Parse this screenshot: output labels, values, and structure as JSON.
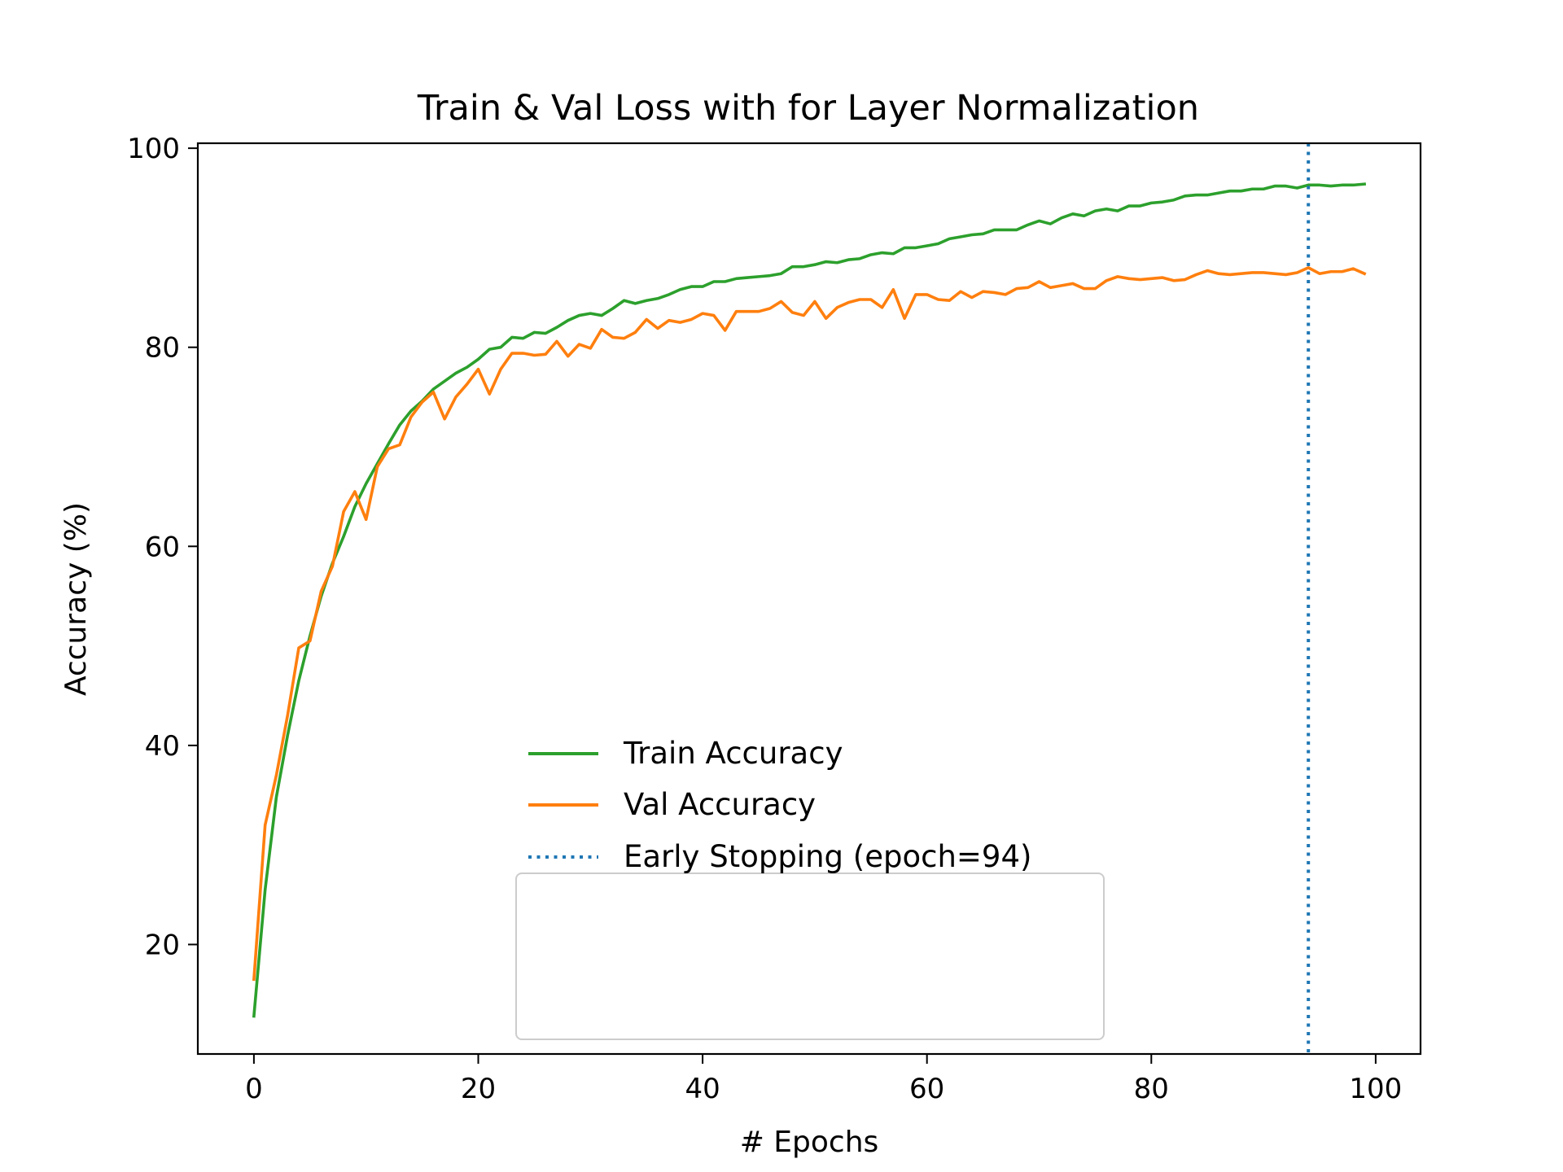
{
  "chart_data": {
    "type": "line",
    "title": "Train & Val Loss with for Layer Normalization",
    "xlabel": "# Epochs",
    "ylabel": "Accuracy (%)",
    "xlim": [
      -5,
      104
    ],
    "ylim": [
      9,
      100.5
    ],
    "xticks": [
      0,
      20,
      40,
      60,
      80,
      100
    ],
    "yticks": [
      20,
      40,
      60,
      80,
      100
    ],
    "grid": false,
    "legend_position": "bottom-center",
    "series": [
      {
        "name": "Train Accuracy",
        "color": "#2ca02c",
        "style": "solid",
        "x": [
          0,
          1,
          2,
          3,
          4,
          5,
          6,
          7,
          8,
          9,
          10,
          11,
          12,
          13,
          14,
          15,
          16,
          17,
          18,
          19,
          20,
          21,
          22,
          23,
          24,
          25,
          26,
          27,
          28,
          29,
          30,
          31,
          32,
          33,
          34,
          35,
          36,
          37,
          38,
          39,
          40,
          41,
          42,
          43,
          44,
          45,
          46,
          47,
          48,
          49,
          50,
          51,
          52,
          53,
          54,
          55,
          56,
          57,
          58,
          59,
          60,
          61,
          62,
          63,
          64,
          65,
          66,
          67,
          68,
          69,
          70,
          71,
          72,
          73,
          74,
          75,
          76,
          77,
          78,
          79,
          80,
          81,
          82,
          83,
          84,
          85,
          86,
          87,
          88,
          89,
          90,
          91,
          92,
          93,
          94,
          95,
          96,
          97,
          98,
          99
        ],
        "values": [
          12.8,
          25.5,
          34.8,
          41.0,
          46.5,
          51.0,
          55.0,
          58.3,
          61.0,
          64.0,
          66.3,
          68.3,
          70.3,
          72.2,
          73.6,
          74.6,
          75.8,
          76.6,
          77.4,
          78.0,
          78.8,
          79.8,
          80.0,
          81.0,
          80.9,
          81.5,
          81.4,
          82.0,
          82.7,
          83.2,
          83.4,
          83.2,
          83.9,
          84.7,
          84.4,
          84.7,
          84.9,
          85.3,
          85.8,
          86.1,
          86.1,
          86.6,
          86.6,
          86.9,
          87.0,
          87.1,
          87.2,
          87.4,
          88.1,
          88.1,
          88.3,
          88.6,
          88.5,
          88.8,
          88.9,
          89.3,
          89.5,
          89.4,
          90.0,
          90.0,
          90.2,
          90.4,
          90.9,
          91.1,
          91.3,
          91.4,
          91.8,
          91.8,
          91.8,
          92.3,
          92.7,
          92.4,
          93.0,
          93.4,
          93.2,
          93.7,
          93.9,
          93.7,
          94.2,
          94.2,
          94.5,
          94.6,
          94.8,
          95.2,
          95.3,
          95.3,
          95.5,
          95.7,
          95.7,
          95.9,
          95.9,
          96.2,
          96.2,
          96.0,
          96.3,
          96.3,
          96.2,
          96.3,
          96.3,
          96.4
        ]
      },
      {
        "name": "Val Accuracy",
        "color": "#ff7f0e",
        "style": "solid",
        "x": [
          0,
          1,
          2,
          3,
          4,
          5,
          6,
          7,
          8,
          9,
          10,
          11,
          12,
          13,
          14,
          15,
          16,
          17,
          18,
          19,
          20,
          21,
          22,
          23,
          24,
          25,
          26,
          27,
          28,
          29,
          30,
          31,
          32,
          33,
          34,
          35,
          36,
          37,
          38,
          39,
          40,
          41,
          42,
          43,
          44,
          45,
          46,
          47,
          48,
          49,
          50,
          51,
          52,
          53,
          54,
          55,
          56,
          57,
          58,
          59,
          60,
          61,
          62,
          63,
          64,
          65,
          66,
          67,
          68,
          69,
          70,
          71,
          72,
          73,
          74,
          75,
          76,
          77,
          78,
          79,
          80,
          81,
          82,
          83,
          84,
          85,
          86,
          87,
          88,
          89,
          90,
          91,
          92,
          93,
          94,
          95,
          96,
          97,
          98,
          99
        ],
        "values": [
          16.5,
          32.0,
          37.0,
          43.0,
          49.8,
          50.5,
          55.5,
          58.0,
          63.5,
          65.5,
          62.7,
          68.0,
          69.8,
          70.2,
          73.0,
          74.5,
          75.5,
          72.8,
          75.0,
          76.3,
          77.8,
          75.3,
          77.8,
          79.4,
          79.4,
          79.2,
          79.3,
          80.6,
          79.1,
          80.3,
          79.9,
          81.8,
          81.0,
          80.9,
          81.5,
          82.8,
          81.9,
          82.7,
          82.5,
          82.8,
          83.4,
          83.2,
          81.7,
          83.6,
          83.6,
          83.6,
          83.9,
          84.6,
          83.5,
          83.2,
          84.6,
          82.9,
          84.0,
          84.5,
          84.8,
          84.8,
          84.0,
          85.8,
          82.9,
          85.3,
          85.3,
          84.8,
          84.7,
          85.6,
          85.0,
          85.6,
          85.5,
          85.3,
          85.9,
          86.0,
          86.6,
          86.0,
          86.2,
          86.4,
          85.9,
          85.9,
          86.7,
          87.1,
          86.9,
          86.8,
          86.9,
          87.0,
          86.7,
          86.8,
          87.3,
          87.7,
          87.4,
          87.3,
          87.4,
          87.5,
          87.5,
          87.4,
          87.3,
          87.5,
          88.0,
          87.4,
          87.6,
          87.6,
          87.9,
          87.4
        ]
      },
      {
        "name": "Early Stopping (epoch=94)",
        "color": "#1f77b4",
        "style": "dotted",
        "type": "vline",
        "x_value": 94
      }
    ]
  }
}
